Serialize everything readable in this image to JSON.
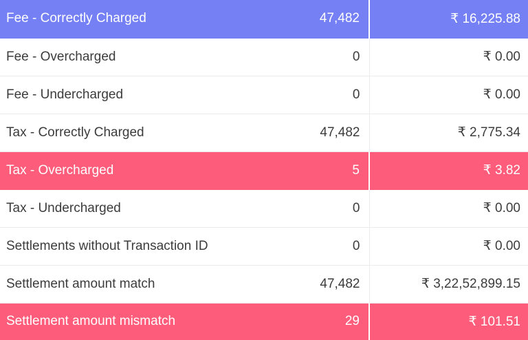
{
  "rows": [
    {
      "label": "Fee - Correctly Charged",
      "count": "47,482",
      "amount": "₹ 16,225.88",
      "highlight": "blue"
    },
    {
      "label": "Fee - Overcharged",
      "count": "0",
      "amount": "₹ 0.00",
      "highlight": ""
    },
    {
      "label": "Fee - Undercharged",
      "count": "0",
      "amount": "₹ 0.00",
      "highlight": ""
    },
    {
      "label": "Tax - Correctly Charged",
      "count": "47,482",
      "amount": "₹ 2,775.34",
      "highlight": ""
    },
    {
      "label": "Tax - Overcharged",
      "count": "5",
      "amount": "₹ 3.82",
      "highlight": "red"
    },
    {
      "label": "Tax - Undercharged",
      "count": "0",
      "amount": "₹ 0.00",
      "highlight": ""
    },
    {
      "label": "Settlements without Transaction ID",
      "count": "0",
      "amount": "₹ 0.00",
      "highlight": ""
    },
    {
      "label": "Settlement amount match",
      "count": "47,482",
      "amount": "₹ 3,22,52,899.15",
      "highlight": ""
    },
    {
      "label": "Settlement amount mismatch",
      "count": "29",
      "amount": "₹ 101.51",
      "highlight": "red"
    }
  ],
  "colors": {
    "highlight_blue": "#7480f4",
    "highlight_red": "#fd5c7a",
    "text": "#3c3c3c",
    "divider": "#ececec"
  }
}
